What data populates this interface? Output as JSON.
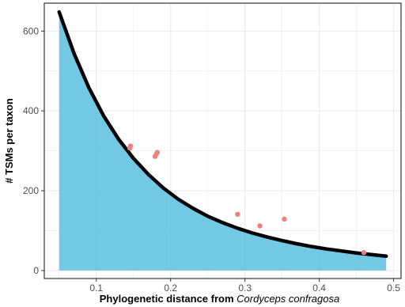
{
  "chart_data": {
    "type": "scatter",
    "xlabel_prefix": "Phylogenetic distance from ",
    "xlabel_species": "Cordyceps confragosa",
    "ylabel": "# TSMs per taxon",
    "xlim": [
      0.03,
      0.51
    ],
    "ylim": [
      -20,
      670
    ],
    "x_ticks": [
      0.1,
      0.2,
      0.3,
      0.4,
      0.5
    ],
    "x_tick_labels": [
      "0.1",
      "0.2",
      "0.3",
      "0.4",
      "0.5"
    ],
    "y_ticks": [
      0,
      200,
      400,
      600
    ],
    "y_tick_labels": [
      "0",
      "200",
      "400",
      "600"
    ],
    "grid": true,
    "points": [
      {
        "x": 0.145,
        "y": 307
      },
      {
        "x": 0.146,
        "y": 312
      },
      {
        "x": 0.179,
        "y": 286
      },
      {
        "x": 0.181,
        "y": 293
      },
      {
        "x": 0.182,
        "y": 296
      },
      {
        "x": 0.29,
        "y": 141
      },
      {
        "x": 0.32,
        "y": 112
      },
      {
        "x": 0.353,
        "y": 129
      },
      {
        "x": 0.46,
        "y": 45
      }
    ],
    "fit_curve": {
      "x": [
        0.05,
        0.07,
        0.09,
        0.11,
        0.13,
        0.15,
        0.17,
        0.19,
        0.21,
        0.23,
        0.25,
        0.27,
        0.29,
        0.31,
        0.33,
        0.35,
        0.37,
        0.39,
        0.41,
        0.43,
        0.45,
        0.47,
        0.49
      ],
      "y": [
        648,
        544,
        458,
        387,
        329,
        281,
        241,
        207,
        179,
        156,
        136,
        120,
        106,
        94,
        84,
        75,
        67,
        60,
        54,
        49,
        44,
        40,
        36
      ]
    },
    "colors": {
      "area_fill": "#5bc0de",
      "curve": "#000000",
      "points": "#f07f7f",
      "grid": "#ebebeb",
      "panel_border": "#333333"
    }
  }
}
